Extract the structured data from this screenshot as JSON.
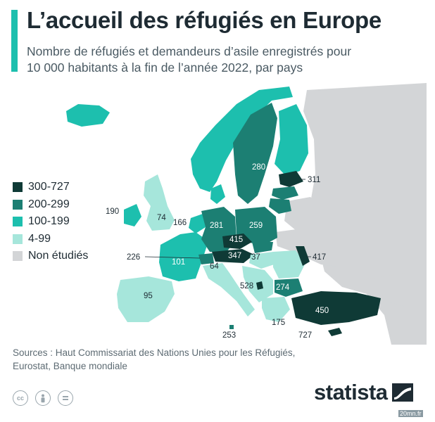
{
  "header": {
    "title": "L’accueil des réfugiés en Europe",
    "subtitle_line1": "Nombre de réfugiés et demandeurs d’asile enregistrés pour",
    "subtitle_line2": "10 000 habitants à la fin de l’année 2022, par pays"
  },
  "legend": {
    "items": [
      {
        "label": "300-727",
        "color": "#0f3a36"
      },
      {
        "label": "200-299",
        "color": "#1c7f73"
      },
      {
        "label": "100-199",
        "color": "#1dbfae"
      },
      {
        "label": "4-99",
        "color": "#a6e6db"
      },
      {
        "label": "Non étudiés",
        "color": "#d3d5d7"
      }
    ]
  },
  "values": [
    {
      "country": "Sweden",
      "value": "280"
    },
    {
      "country": "Estonia",
      "value": "311"
    },
    {
      "country": "Ireland",
      "value": "190"
    },
    {
      "country": "United Kingdom",
      "value": "74"
    },
    {
      "country": "Netherlands",
      "value": "166"
    },
    {
      "country": "Germany",
      "value": "281"
    },
    {
      "country": "Poland",
      "value": "259"
    },
    {
      "country": "Czechia",
      "value": "415"
    },
    {
      "country": "Austria",
      "value": "347"
    },
    {
      "country": "Switzerland",
      "value": "226"
    },
    {
      "country": "France",
      "value": "101"
    },
    {
      "country": "Italy",
      "value": "64"
    },
    {
      "country": "Hungary",
      "value": "37"
    },
    {
      "country": "Moldova",
      "value": "417"
    },
    {
      "country": "Montenegro",
      "value": "528"
    },
    {
      "country": "Bulgaria",
      "value": "274"
    },
    {
      "country": "Spain",
      "value": "95"
    },
    {
      "country": "Turkey",
      "value": "450"
    },
    {
      "country": "Greece",
      "value": "175"
    },
    {
      "country": "Malta",
      "value": "253"
    },
    {
      "country": "Cyprus",
      "value": "727"
    }
  ],
  "footer": {
    "sources_line1": "Sources : Haut Commissariat des Nations Unies pour les Réfugiés,",
    "sources_line2": "Eurostat, Banque mondiale",
    "brand": "statista",
    "credit": "20mn.fr",
    "cc_icons": [
      "cc-icon",
      "attribution-icon",
      "no-derivatives-icon"
    ]
  },
  "colors": {
    "background_sea": "#ffffff",
    "non_studied": "#d3d5d7",
    "accent": "#1dbfae"
  }
}
